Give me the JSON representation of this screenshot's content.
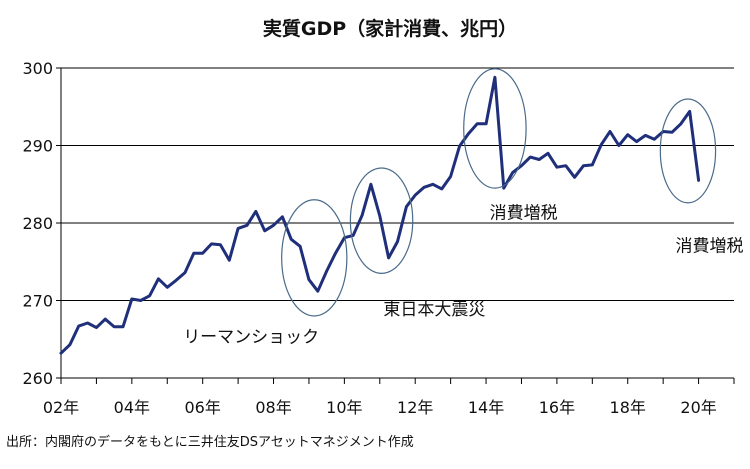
{
  "chart_data": {
    "type": "line",
    "title": "実質GDP（家計消費、兆円）",
    "source": "出所：内閣府のデータをもとに三井住友DSアセットマネジメント作成",
    "ylim": [
      260,
      300
    ],
    "yticks": [
      260,
      270,
      280,
      290,
      300
    ],
    "xlim": [
      2002,
      2021
    ],
    "xticks": [
      {
        "x": 2002,
        "label": "02年"
      },
      {
        "x": 2004,
        "label": "04年"
      },
      {
        "x": 2006,
        "label": "06年"
      },
      {
        "x": 2008,
        "label": "08年"
      },
      {
        "x": 2010,
        "label": "10年"
      },
      {
        "x": 2012,
        "label": "12年"
      },
      {
        "x": 2014,
        "label": "14年"
      },
      {
        "x": 2016,
        "label": "16年"
      },
      {
        "x": 2018,
        "label": "18年"
      },
      {
        "x": 2020,
        "label": "20年"
      }
    ],
    "grid": "horizontal",
    "series": [
      {
        "color": "#1f2f7a",
        "points": [
          [
            2002.0,
            263.2
          ],
          [
            2002.25,
            264.3
          ],
          [
            2002.5,
            266.7
          ],
          [
            2002.75,
            267.1
          ],
          [
            2003.0,
            266.5
          ],
          [
            2003.25,
            267.6
          ],
          [
            2003.5,
            266.6
          ],
          [
            2003.75,
            266.6
          ],
          [
            2004.0,
            270.2
          ],
          [
            2004.25,
            270.0
          ],
          [
            2004.5,
            270.6
          ],
          [
            2004.75,
            272.8
          ],
          [
            2005.0,
            271.7
          ],
          [
            2005.25,
            272.6
          ],
          [
            2005.5,
            273.6
          ],
          [
            2005.75,
            276.1
          ],
          [
            2006.0,
            276.1
          ],
          [
            2006.25,
            277.3
          ],
          [
            2006.5,
            277.2
          ],
          [
            2006.75,
            275.2
          ],
          [
            2007.0,
            279.3
          ],
          [
            2007.25,
            279.7
          ],
          [
            2007.5,
            281.5
          ],
          [
            2007.75,
            279.0
          ],
          [
            2008.0,
            279.7
          ],
          [
            2008.25,
            280.8
          ],
          [
            2008.5,
            277.9
          ],
          [
            2008.75,
            277.0
          ],
          [
            2009.0,
            272.7
          ],
          [
            2009.25,
            271.2
          ],
          [
            2009.5,
            273.8
          ],
          [
            2009.75,
            276.1
          ],
          [
            2010.0,
            278.1
          ],
          [
            2010.25,
            278.4
          ],
          [
            2010.5,
            281.0
          ],
          [
            2010.75,
            285.0
          ],
          [
            2011.0,
            280.9
          ],
          [
            2011.25,
            275.5
          ],
          [
            2011.5,
            277.6
          ],
          [
            2011.75,
            282.1
          ],
          [
            2012.0,
            283.6
          ],
          [
            2012.25,
            284.6
          ],
          [
            2012.5,
            285.0
          ],
          [
            2012.75,
            284.4
          ],
          [
            2013.0,
            286.0
          ],
          [
            2013.25,
            289.9
          ],
          [
            2013.5,
            291.5
          ],
          [
            2013.75,
            292.8
          ],
          [
            2014.0,
            292.8
          ],
          [
            2014.25,
            298.8
          ],
          [
            2014.5,
            284.5
          ],
          [
            2014.75,
            286.5
          ],
          [
            2015.0,
            287.4
          ],
          [
            2015.25,
            288.5
          ],
          [
            2015.5,
            288.2
          ],
          [
            2015.75,
            289.0
          ],
          [
            2016.0,
            287.2
          ],
          [
            2016.25,
            287.4
          ],
          [
            2016.5,
            285.9
          ],
          [
            2016.75,
            287.4
          ],
          [
            2017.0,
            287.5
          ],
          [
            2017.25,
            290.1
          ],
          [
            2017.5,
            291.8
          ],
          [
            2017.75,
            290.0
          ],
          [
            2018.0,
            291.4
          ],
          [
            2018.25,
            290.5
          ],
          [
            2018.5,
            291.3
          ],
          [
            2018.75,
            290.8
          ],
          [
            2019.0,
            291.8
          ],
          [
            2019.25,
            291.7
          ],
          [
            2019.5,
            292.8
          ],
          [
            2019.75,
            294.4
          ],
          [
            2020.0,
            285.5
          ]
        ]
      }
    ],
    "annotations": [
      {
        "text": "リーマンショック",
        "x": 2009.15,
        "y": 275.5,
        "rx": 0.92,
        "ry": 7.5,
        "label_x": 2005.45,
        "label_y": 264.6
      },
      {
        "text": "東日本大震災",
        "x": 2011.05,
        "y": 280.3,
        "rx": 0.88,
        "ry": 6.8,
        "label_x": 2011.1,
        "label_y": 268.1
      },
      {
        "text": "消費増税",
        "x": 2014.25,
        "y": 292.2,
        "rx": 0.88,
        "ry": 7.7,
        "label_x": 2014.1,
        "label_y": 280.6
      },
      {
        "text": "消費増税",
        "x": 2019.7,
        "y": 289.3,
        "rx": 0.78,
        "ry": 6.7,
        "label_x": 2019.35,
        "label_y": 276.3
      }
    ]
  }
}
